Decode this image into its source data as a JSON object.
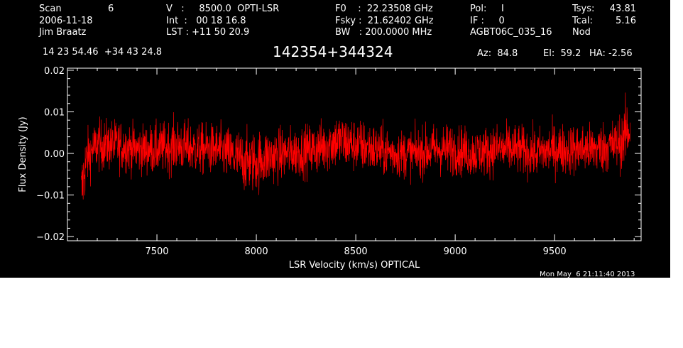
{
  "header": {
    "scan_label": "Scan",
    "scan_number": "6",
    "date": "2006-11-18",
    "observer": "Jim Braatz",
    "velocity": "V   :     8500.0  OPTI-LSR",
    "integration": "Int  :   00 18 16.8",
    "lst": "LST : +11 50 20.9",
    "f0": "F0    :  22.23508 GHz",
    "fsky": "Fsky :  21.62402 GHz",
    "bw": "BW   : 200.0000 MHz",
    "pol": "Pol:     I",
    "if": "IF :     0",
    "project": "AGBT06C_035_16",
    "tsys_label": "Tsys:",
    "tsys_value": "43.81",
    "tcal_label": "Tcal:",
    "tcal_value": "5.16",
    "mode": "Nod",
    "coords": "14 23 54.46  +34 43 24.8",
    "source": "142354+344324",
    "az": "Az:  84.8",
    "el": "El:  59.2",
    "ha": "HA: -2.56",
    "timestamp": "Mon May  6 21:11:40 2013"
  },
  "chart_data": {
    "type": "line",
    "xlabel": "LSR Velocity (km/s) OPTICAL",
    "ylabel": "Flux Density (Jy)",
    "xlim": [
      7050,
      9935
    ],
    "ylim": [
      -0.021,
      0.0205
    ],
    "xticks": [
      7500,
      8000,
      8500,
      9000,
      9500
    ],
    "xtick_labels": [
      "7500",
      "8000",
      "8500",
      "9000",
      "9500"
    ],
    "yticks": [
      -0.02,
      -0.01,
      0.0,
      0.01,
      0.02
    ],
    "ytick_labels": [
      "−0.02",
      "−0.01",
      "0.00",
      "0.01",
      "0.02"
    ],
    "series": [
      {
        "color": "#ff0000",
        "x_range": [
          7120,
          9880
        ],
        "envelope": {
          "x": [
            7120,
            7135,
            7150,
            7170,
            7200,
            7300,
            7400,
            7500,
            7600,
            7700,
            7800,
            7900,
            7950,
            8000,
            8050,
            8150,
            8300,
            8400,
            8500,
            8600,
            8700,
            8800,
            8900,
            9000,
            9100,
            9200,
            9300,
            9400,
            9500,
            9600,
            9700,
            9800,
            9840,
            9860,
            9880
          ],
          "mean": [
            -0.01,
            -0.004,
            -0.001,
            0.0005,
            0.002,
            0.002,
            0.001,
            0.001,
            0.002,
            0.001,
            0.001,
            -0.001,
            -0.002,
            -0.002,
            -0.001,
            0.0,
            0.001,
            0.003,
            0.002,
            0.001,
            0.0,
            0.0,
            0.001,
            0.001,
            0.0,
            0.001,
            0.001,
            0.0,
            0.001,
            0.001,
            0.001,
            0.002,
            0.003,
            0.005,
            0.006
          ],
          "amplitude": [
            0.006,
            0.0055,
            0.0045,
            0.004,
            0.004,
            0.004,
            0.0038,
            0.004,
            0.0042,
            0.004,
            0.004,
            0.0045,
            0.0048,
            0.0048,
            0.0045,
            0.004,
            0.004,
            0.0045,
            0.0042,
            0.004,
            0.0038,
            0.0038,
            0.004,
            0.004,
            0.0038,
            0.004,
            0.004,
            0.0038,
            0.004,
            0.004,
            0.004,
            0.0042,
            0.0045,
            0.005,
            0.0055
          ]
        }
      }
    ]
  }
}
